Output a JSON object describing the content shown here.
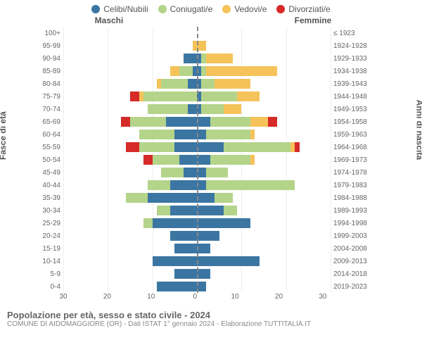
{
  "chart": {
    "type": "population-pyramid",
    "categories": [
      "Celibi/Nubili",
      "Coniugati/e",
      "Vedovi/e",
      "Divorziati/e"
    ],
    "colors": {
      "Celibi/Nubili": "#3b76a3",
      "Coniugati/e": "#b4d48a",
      "Vedovi/e": "#f5c35a",
      "Divorziati/e": "#d62a28"
    },
    "header_male": "Maschi",
    "header_female": "Femmine",
    "ylabel_left": "Fasce di età",
    "ylabel_right": "Anni di nascita",
    "xmax": 30,
    "xticks": [
      30,
      20,
      10,
      0,
      10,
      20,
      30
    ],
    "background_color": "#ffffff",
    "grid_color": "#eeeeee",
    "title": "Popolazione per età, sesso e stato civile - 2024",
    "subtitle": "COMUNE DI AIDOMAGGIORE (OR) - Dati ISTAT 1° gennaio 2024 - Elaborazione TUTTITALIA.IT",
    "rows": [
      {
        "age": "100+",
        "birth": "≤ 1923",
        "m": [
          0,
          0,
          0,
          0
        ],
        "f": [
          0,
          0,
          0,
          0
        ]
      },
      {
        "age": "95-99",
        "birth": "1924-1928",
        "m": [
          0,
          0,
          1,
          0
        ],
        "f": [
          0,
          0,
          2,
          0
        ]
      },
      {
        "age": "90-94",
        "birth": "1929-1933",
        "m": [
          3,
          0,
          0,
          0
        ],
        "f": [
          1,
          1,
          6,
          0
        ]
      },
      {
        "age": "85-89",
        "birth": "1934-1938",
        "m": [
          1,
          3,
          2,
          0
        ],
        "f": [
          1,
          1,
          16,
          0
        ]
      },
      {
        "age": "80-84",
        "birth": "1939-1943",
        "m": [
          2,
          6,
          1,
          0
        ],
        "f": [
          1,
          3,
          8,
          0
        ]
      },
      {
        "age": "75-79",
        "birth": "1944-1948",
        "m": [
          0,
          12,
          1,
          2
        ],
        "f": [
          1,
          8,
          5,
          0
        ]
      },
      {
        "age": "70-74",
        "birth": "1949-1953",
        "m": [
          2,
          9,
          0,
          0
        ],
        "f": [
          1,
          5,
          4,
          0
        ]
      },
      {
        "age": "65-69",
        "birth": "1954-1958",
        "m": [
          7,
          8,
          0,
          2
        ],
        "f": [
          3,
          9,
          4,
          2
        ]
      },
      {
        "age": "60-64",
        "birth": "1959-1963",
        "m": [
          5,
          8,
          0,
          0
        ],
        "f": [
          2,
          10,
          1,
          0
        ]
      },
      {
        "age": "55-59",
        "birth": "1964-1968",
        "m": [
          5,
          8,
          0,
          3
        ],
        "f": [
          6,
          15,
          1,
          1
        ]
      },
      {
        "age": "50-54",
        "birth": "1969-1973",
        "m": [
          4,
          6,
          0,
          2
        ],
        "f": [
          3,
          9,
          1,
          0
        ]
      },
      {
        "age": "45-49",
        "birth": "1974-1978",
        "m": [
          3,
          5,
          0,
          0
        ],
        "f": [
          2,
          5,
          0,
          0
        ]
      },
      {
        "age": "40-44",
        "birth": "1979-1983",
        "m": [
          6,
          5,
          0,
          0
        ],
        "f": [
          2,
          20,
          0,
          0
        ]
      },
      {
        "age": "35-39",
        "birth": "1984-1988",
        "m": [
          11,
          5,
          0,
          0
        ],
        "f": [
          4,
          4,
          0,
          0
        ]
      },
      {
        "age": "30-34",
        "birth": "1989-1993",
        "m": [
          6,
          3,
          0,
          0
        ],
        "f": [
          6,
          3,
          0,
          0
        ]
      },
      {
        "age": "25-29",
        "birth": "1994-1998",
        "m": [
          10,
          2,
          0,
          0
        ],
        "f": [
          12,
          0,
          0,
          0
        ]
      },
      {
        "age": "20-24",
        "birth": "1999-2003",
        "m": [
          6,
          0,
          0,
          0
        ],
        "f": [
          5,
          0,
          0,
          0
        ]
      },
      {
        "age": "15-19",
        "birth": "2004-2008",
        "m": [
          5,
          0,
          0,
          0
        ],
        "f": [
          3,
          0,
          0,
          0
        ]
      },
      {
        "age": "10-14",
        "birth": "2009-2013",
        "m": [
          10,
          0,
          0,
          0
        ],
        "f": [
          14,
          0,
          0,
          0
        ]
      },
      {
        "age": "5-9",
        "birth": "2014-2018",
        "m": [
          5,
          0,
          0,
          0
        ],
        "f": [
          3,
          0,
          0,
          0
        ]
      },
      {
        "age": "0-4",
        "birth": "2019-2023",
        "m": [
          9,
          0,
          0,
          0
        ],
        "f": [
          2,
          0,
          0,
          0
        ]
      }
    ]
  }
}
